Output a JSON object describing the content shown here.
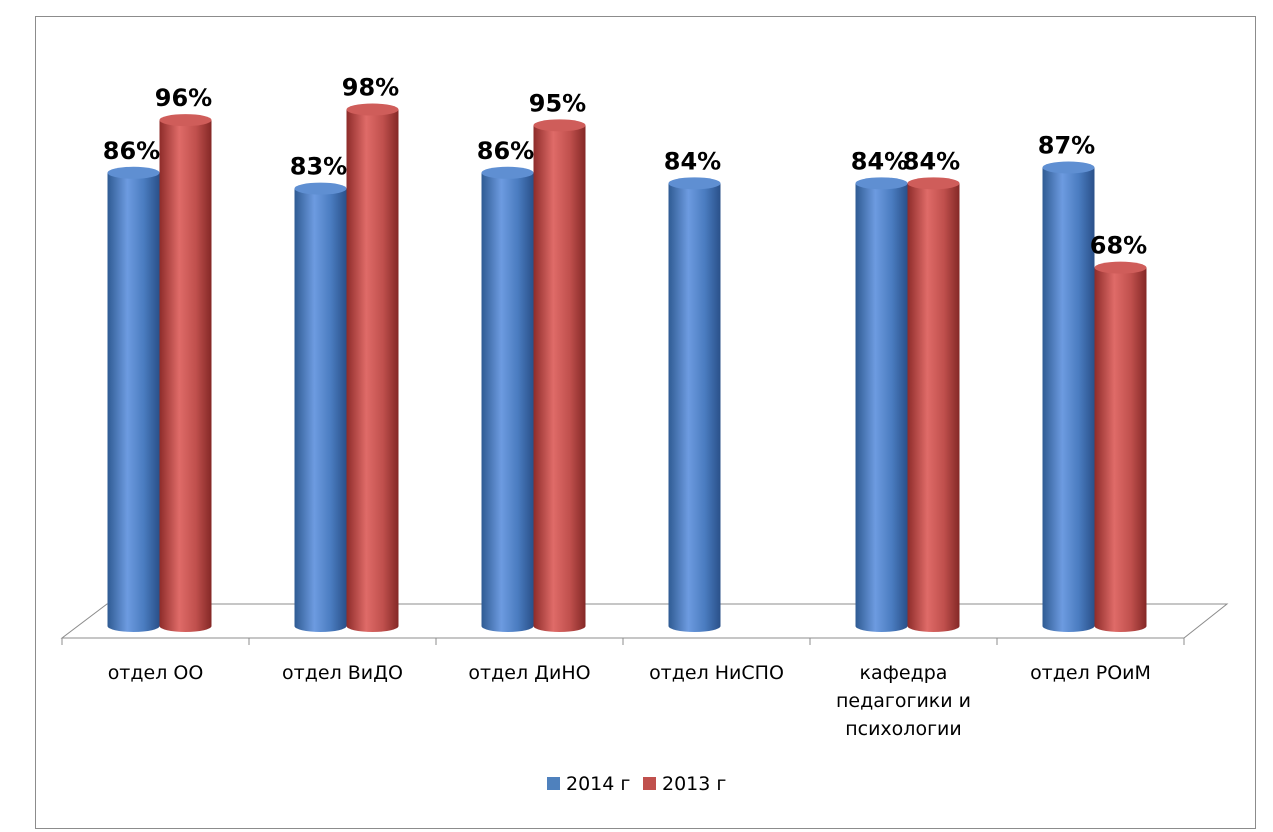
{
  "page": {
    "top_text": ""
  },
  "chart_data": {
    "type": "bar",
    "title": "",
    "xlabel": "",
    "ylabel": "",
    "ylim": [
      0,
      100
    ],
    "grid": false,
    "legend_position": "bottom",
    "categories": [
      [
        "отдел ОО"
      ],
      [
        "отдел ВиДО"
      ],
      [
        "отдел ДиНО"
      ],
      [
        "отдел НиСПО"
      ],
      [
        "кафедра",
        "педагогики и",
        "психологии"
      ],
      [
        "отдел РОиМ"
      ]
    ],
    "series": [
      {
        "name": "2014 г",
        "color": "#4f81bd",
        "values": [
          86,
          83,
          86,
          84,
          84,
          87
        ],
        "labels": [
          "86%",
          "83%",
          "86%",
          "84%",
          "84%",
          "87%"
        ]
      },
      {
        "name": "2013 г",
        "color": "#c0504d",
        "values": [
          96,
          98,
          95,
          null,
          84,
          68
        ],
        "labels": [
          "96%",
          "98%",
          "95%",
          "",
          "84%",
          "68%"
        ]
      }
    ]
  }
}
